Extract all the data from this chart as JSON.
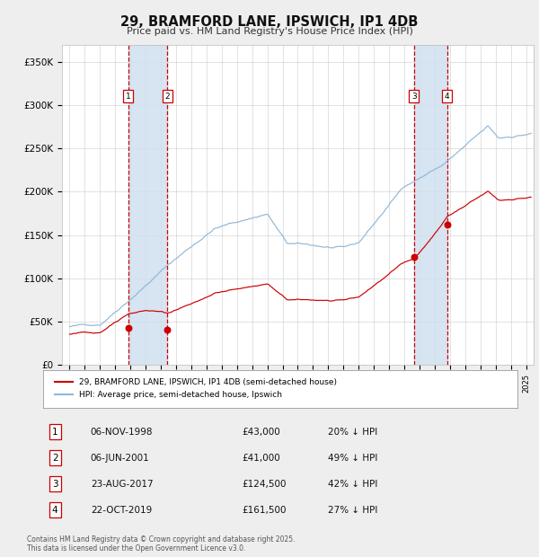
{
  "title": "29, BRAMFORD LANE, IPSWICH, IP1 4DB",
  "subtitle": "Price paid vs. HM Land Registry's House Price Index (HPI)",
  "background_color": "#eeeeee",
  "plot_bg_color": "#ffffff",
  "xlim": [
    1994.5,
    2025.5
  ],
  "ylim": [
    0,
    370000
  ],
  "yticks": [
    0,
    50000,
    100000,
    150000,
    200000,
    250000,
    300000,
    350000
  ],
  "ytick_labels": [
    "£0",
    "£50K",
    "£100K",
    "£150K",
    "£200K",
    "£250K",
    "£300K",
    "£350K"
  ],
  "sale_dates": [
    1998.85,
    2001.43,
    2017.64,
    2019.81
  ],
  "sale_prices": [
    43000,
    41000,
    124500,
    161500
  ],
  "sale_labels": [
    "1",
    "2",
    "3",
    "4"
  ],
  "vline_pairs": [
    [
      1998.85,
      2001.43
    ],
    [
      2017.64,
      2019.81
    ]
  ],
  "shade_color": "#d0e0ef",
  "vline_color": "#cc0000",
  "red_line_color": "#cc0000",
  "blue_line_color": "#90b8d8",
  "dot_color": "#cc0000",
  "legend_entries": [
    "29, BRAMFORD LANE, IPSWICH, IP1 4DB (semi-detached house)",
    "HPI: Average price, semi-detached house, Ipswich"
  ],
  "table_data": [
    [
      "1",
      "06-NOV-1998",
      "£43,000",
      "20% ↓ HPI"
    ],
    [
      "2",
      "06-JUN-2001",
      "£41,000",
      "49% ↓ HPI"
    ],
    [
      "3",
      "23-AUG-2017",
      "£124,500",
      "42% ↓ HPI"
    ],
    [
      "4",
      "22-OCT-2019",
      "£161,500",
      "27% ↓ HPI"
    ]
  ],
  "footer": "Contains HM Land Registry data © Crown copyright and database right 2025.\nThis data is licensed under the Open Government Licence v3.0."
}
